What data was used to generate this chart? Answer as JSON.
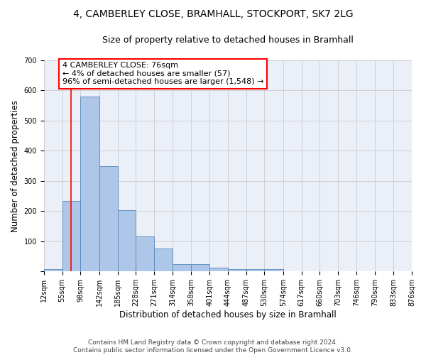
{
  "title_line1": "4, CAMBERLEY CLOSE, BRAMHALL, STOCKPORT, SK7 2LG",
  "title_line2": "Size of property relative to detached houses in Bramhall",
  "xlabel": "Distribution of detached houses by size in Bramhall",
  "ylabel": "Number of detached properties",
  "bin_edges": [
    12,
    55,
    98,
    142,
    185,
    228,
    271,
    314,
    358,
    401,
    444,
    487,
    530,
    574,
    617,
    660,
    703,
    746,
    790,
    833,
    876
  ],
  "bar_heights": [
    7,
    235,
    580,
    350,
    203,
    117,
    75,
    25,
    25,
    13,
    8,
    7,
    7,
    0,
    0,
    0,
    0,
    0,
    0,
    0
  ],
  "bar_color": "#aec6e8",
  "bar_edge_color": "#5588bb",
  "property_line_x": 76,
  "property_line_color": "red",
  "annotation_text": "4 CAMBERLEY CLOSE: 76sqm\n← 4% of detached houses are smaller (57)\n96% of semi-detached houses are larger (1,548) →",
  "annotation_box_color": "white",
  "annotation_box_edge_color": "red",
  "ylim": [
    0,
    700
  ],
  "xlim": [
    12,
    876
  ],
  "yticks": [
    0,
    100,
    200,
    300,
    400,
    500,
    600,
    700
  ],
  "tick_labels": [
    "12sqm",
    "55sqm",
    "98sqm",
    "142sqm",
    "185sqm",
    "228sqm",
    "271sqm",
    "314sqm",
    "358sqm",
    "401sqm",
    "444sqm",
    "487sqm",
    "530sqm",
    "574sqm",
    "617sqm",
    "660sqm",
    "703sqm",
    "746sqm",
    "790sqm",
    "833sqm",
    "876sqm"
  ],
  "grid_color": "#cccccc",
  "background_color": "#eaeff8",
  "footer_text": "Contains HM Land Registry data © Crown copyright and database right 2024.\nContains public sector information licensed under the Open Government Licence v3.0.",
  "title_fontsize": 10,
  "subtitle_fontsize": 9,
  "axis_label_fontsize": 8.5,
  "tick_fontsize": 7,
  "annotation_fontsize": 8,
  "footer_fontsize": 6.5
}
